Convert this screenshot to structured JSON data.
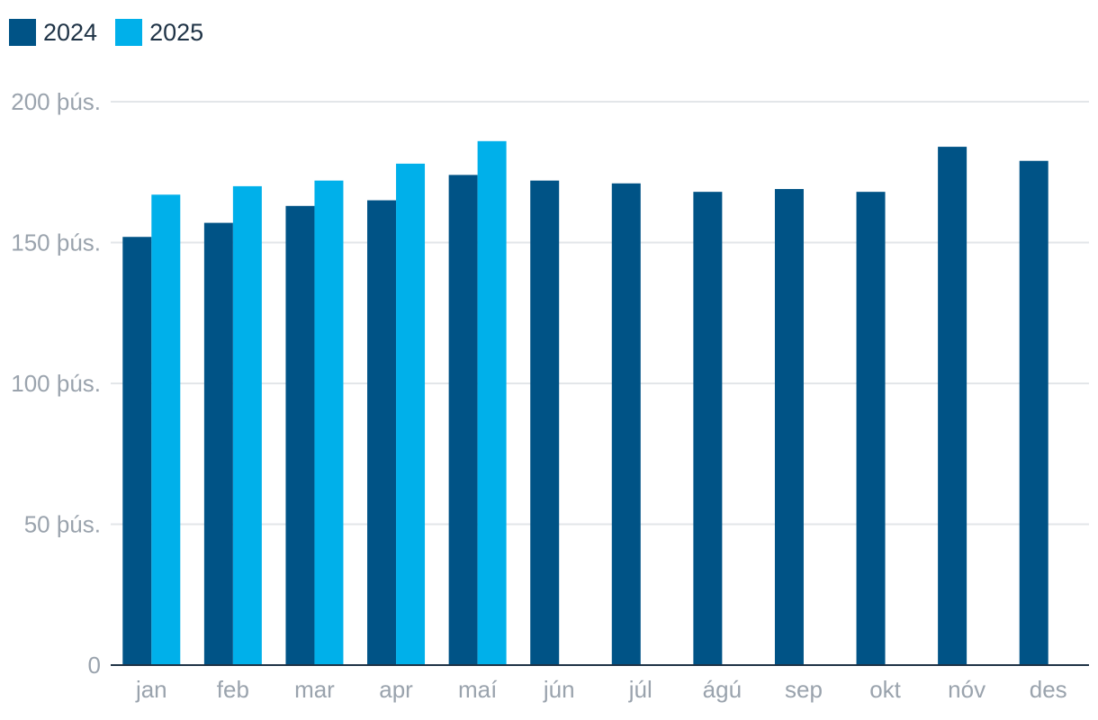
{
  "chart_data": {
    "type": "bar",
    "categories": [
      "jan",
      "feb",
      "mar",
      "apr",
      "maí",
      "jún",
      "júl",
      "ágú",
      "sep",
      "okt",
      "nóv",
      "des"
    ],
    "series": [
      {
        "name": "2024",
        "color": "#005386",
        "values": [
          152,
          157,
          163,
          165,
          174,
          172,
          171,
          168,
          169,
          168,
          184,
          179
        ]
      },
      {
        "name": "2025",
        "color": "#00b0ea",
        "values": [
          167,
          170,
          172,
          178,
          186,
          null,
          null,
          null,
          null,
          null,
          null,
          null
        ]
      }
    ],
    "y_ticks": [
      {
        "value": 0,
        "label": "0"
      },
      {
        "value": 50,
        "label": "50 þús."
      },
      {
        "value": 100,
        "label": "100 þús."
      },
      {
        "value": 150,
        "label": "150 þús."
      },
      {
        "value": 200,
        "label": "200 þús."
      }
    ],
    "ylim": [
      0,
      200
    ],
    "grid": true,
    "legend_position": "top-left"
  }
}
